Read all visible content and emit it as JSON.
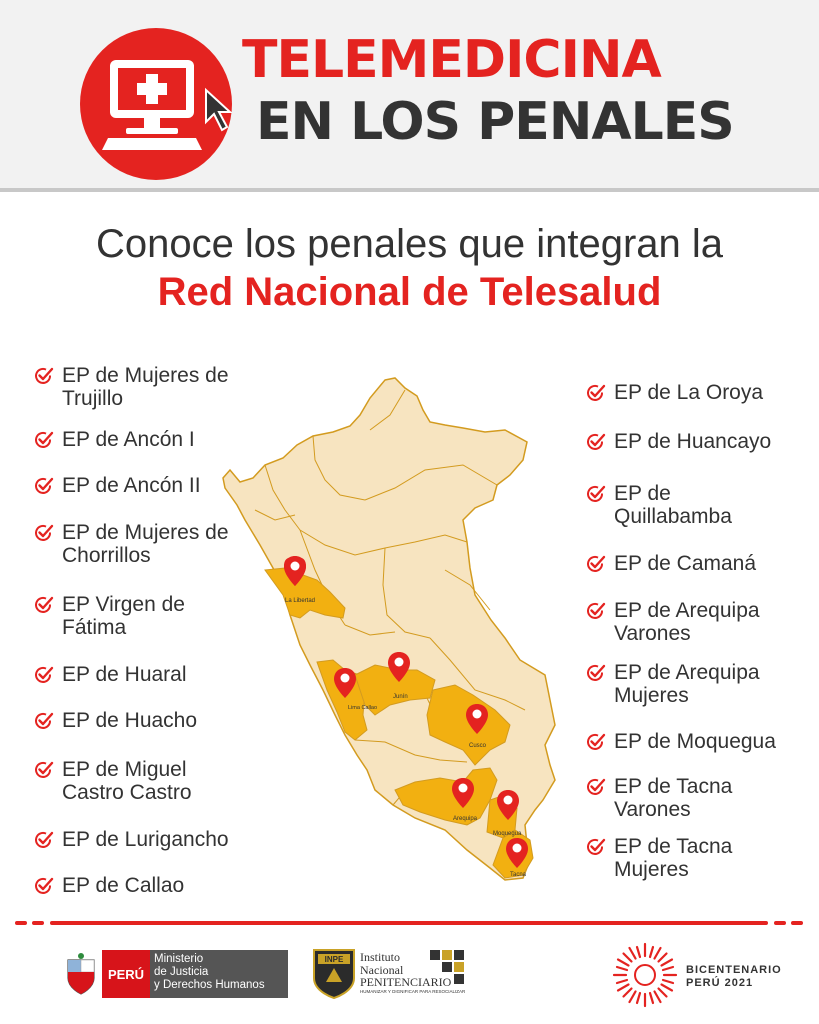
{
  "header": {
    "title_line1": "TELEMEDICINA",
    "title_line2": "EN LOS PENALES",
    "logo_icon": "computer-medical-cross-icon"
  },
  "subtitle": {
    "line1": "Conoce los penales que integran la",
    "line2": "Red Nacional de Telesalud"
  },
  "left_list": [
    "EP de Mujeres de Trujillo",
    "EP de Ancón I",
    "EP de Ancón II",
    "EP de Mujeres de Chorrillos",
    "EP Virgen de Fátima",
    "EP de Huaral",
    "EP de Huacho",
    "EP de Miguel Castro Castro",
    "EP de Lurigancho",
    "EP de Callao"
  ],
  "right_list": [
    "EP de La Oroya",
    "EP de Huancayo",
    "EP de Quillabamba",
    "EP de Camaná",
    "EP de Arequipa Varones",
    "EP de Arequipa Mujeres",
    "EP de Moquegua",
    "EP de Tacna Varones",
    "EP de Tacna Mujeres"
  ],
  "map": {
    "pins": [
      "La Libertad",
      "Lima Callao",
      "Junín",
      "Cusco",
      "Arequipa",
      "Moquegua",
      "Tacna"
    ],
    "pin_icon": "map-pin-icon"
  },
  "footer": {
    "peru_label": "PERÚ",
    "ministry": [
      "Ministerio",
      "de Justicia",
      "y Derechos Humanos"
    ],
    "inpe_badge": "INPE",
    "inpe_lines": [
      "Instituto",
      "Nacional",
      "PENITENCIARIO"
    ],
    "inpe_tagline": "HUMANIZAR Y DIGNIFICAR PARA RESOCIALIZAR",
    "bicentenario_line1": "BICENTENARIO",
    "bicentenario_line2": "PERÚ 2021"
  },
  "colors": {
    "red": "#e42320",
    "dark": "#333333",
    "map_light": "#f7e4c0",
    "map_highlight": "#f2b011",
    "header_bg": "#f2f2f2"
  }
}
